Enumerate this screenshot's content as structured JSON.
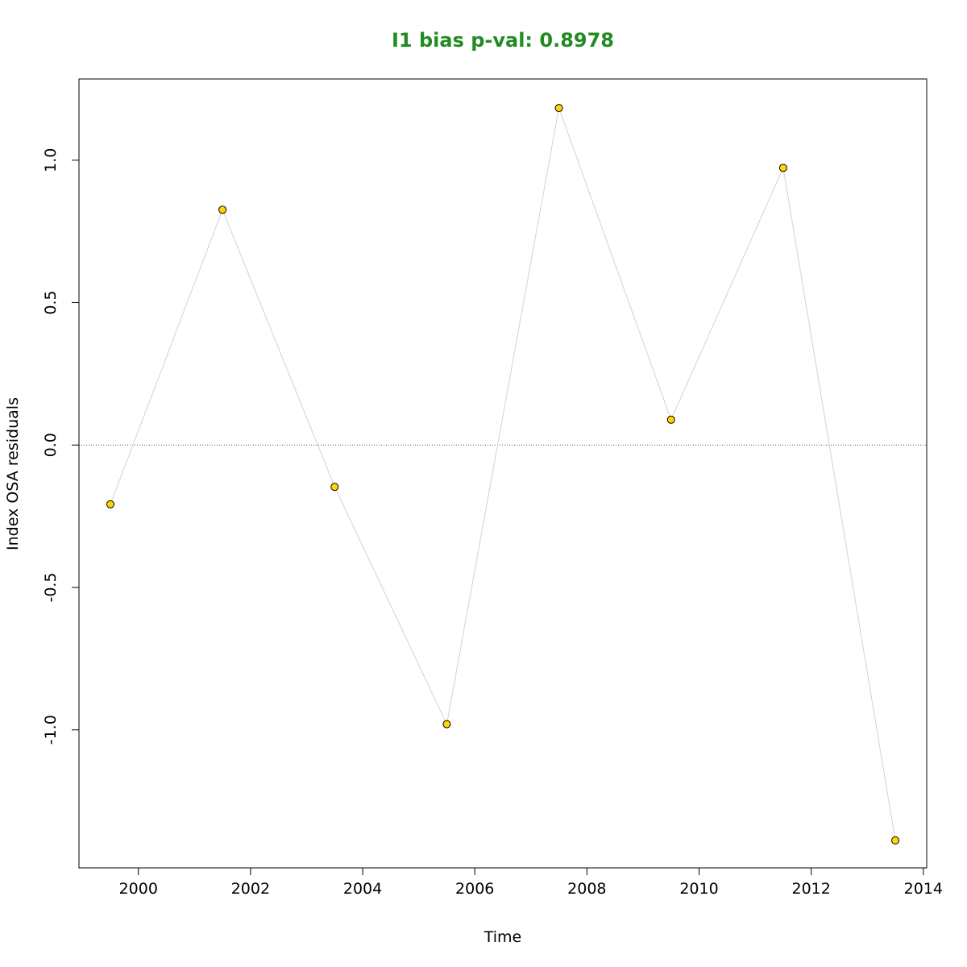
{
  "chart_data": {
    "type": "scatter",
    "title": "I1 bias p-val: 0.8978",
    "title_color": "#228B22",
    "xlabel": "Time",
    "ylabel": "Index OSA residuals",
    "xlim": [
      1998.94,
      2014.06
    ],
    "ylim": [
      -1.4845,
      1.2851
    ],
    "x_ticks": [
      2000,
      2002,
      2004,
      2006,
      2008,
      2010,
      2012,
      2014
    ],
    "x_tick_labels": [
      "2000",
      "2002",
      "2004",
      "2006",
      "2008",
      "2010",
      "2012",
      "2014"
    ],
    "y_ticks": [
      -1.0,
      -0.5,
      0.0,
      0.5,
      1.0
    ],
    "y_tick_labels": [
      "-1.0",
      "-0.5",
      "0.0",
      "0.5",
      "1.0"
    ],
    "reference_line_y": 0,
    "grid": false,
    "points": [
      {
        "x": 1999.5,
        "y": -0.208
      },
      {
        "x": 2001.5,
        "y": 0.826
      },
      {
        "x": 2003.5,
        "y": -0.147
      },
      {
        "x": 2005.5,
        "y": -0.98
      },
      {
        "x": 2007.5,
        "y": 1.183
      },
      {
        "x": 2009.5,
        "y": 0.089
      },
      {
        "x": 2011.5,
        "y": 0.973
      },
      {
        "x": 2013.5,
        "y": -1.388
      }
    ],
    "point_color": "#FFD700",
    "point_edge_color": "#000000",
    "line_color": "#D3D3D3"
  }
}
